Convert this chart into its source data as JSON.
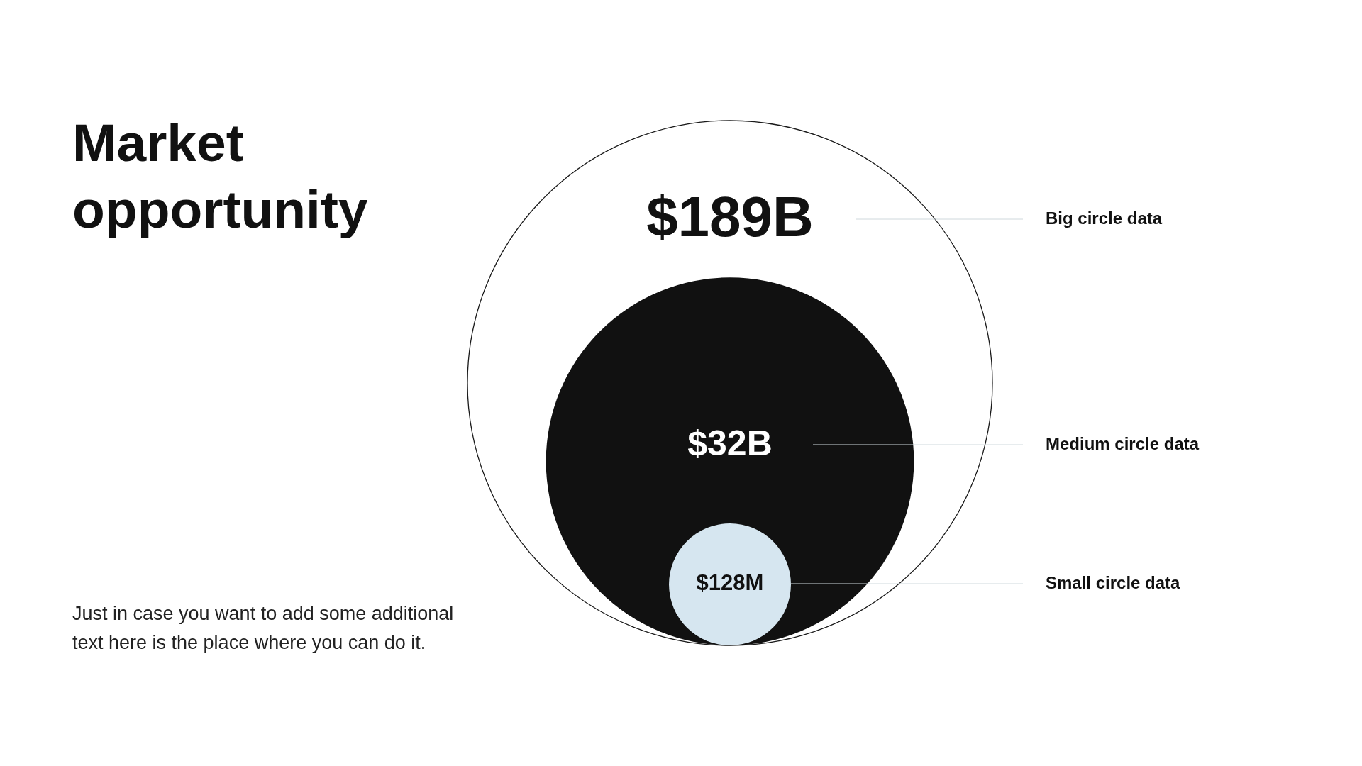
{
  "chart_data": {
    "type": "other",
    "title": "Market opportunity",
    "categories": [
      "Big circle data",
      "Medium circle data",
      "Small circle data"
    ],
    "values": [
      189000000000,
      32000000000,
      128000000
    ],
    "value_labels": [
      "$189B",
      "$32B",
      "$128M"
    ],
    "colors": [
      "#ffffff",
      "#111111",
      "#d6e6f0"
    ],
    "annotations": [
      "Just in case you want to add some additional text here is the place where you can do it."
    ]
  }
}
